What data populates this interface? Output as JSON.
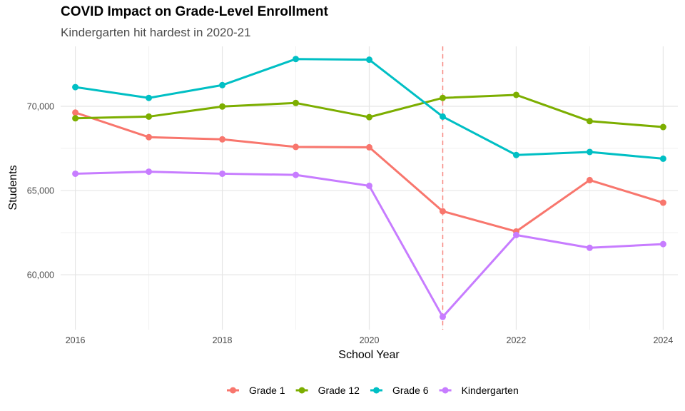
{
  "chart_data": {
    "type": "line",
    "title": "COVID Impact on Grade-Level Enrollment",
    "subtitle": "Kindergarten hit hardest in 2020-21",
    "xlabel": "School Year",
    "ylabel": "Students",
    "x": [
      2016,
      2017,
      2018,
      2019,
      2020,
      2021,
      2022,
      2023,
      2024
    ],
    "xlim": [
      2015.8,
      2024.2
    ],
    "ylim": [
      56740,
      73560
    ],
    "x_ticks": [
      2016,
      2018,
      2020,
      2022,
      2024
    ],
    "x_tick_labels": [
      "2016",
      "2018",
      "2020",
      "2022",
      "2024"
    ],
    "y_ticks": [
      60000,
      65000,
      70000
    ],
    "y_tick_labels": [
      "60,000",
      "65,000",
      "70,000"
    ],
    "grid": true,
    "legend_position": "bottom",
    "reference_line": {
      "orientation": "vertical",
      "x": 2021,
      "style": "dashed",
      "color": "#F8766D"
    },
    "series": [
      {
        "name": "Grade 1",
        "color": "#F8766D",
        "values": [
          69630,
          68170,
          68040,
          67590,
          67570,
          63770,
          62570,
          65620,
          64280
        ]
      },
      {
        "name": "Grade 12",
        "color": "#7CAE00",
        "values": [
          69290,
          69390,
          69990,
          70200,
          69360,
          70500,
          70680,
          69120,
          68770
        ]
      },
      {
        "name": "Grade 6",
        "color": "#00BFC4",
        "values": [
          71140,
          70500,
          71260,
          72810,
          72770,
          69390,
          67110,
          67290,
          66890
        ]
      },
      {
        "name": "Kindergarten",
        "color": "#C77CFF",
        "values": [
          66000,
          66120,
          66000,
          65930,
          65280,
          57500,
          62360,
          61600,
          61820
        ]
      }
    ]
  }
}
